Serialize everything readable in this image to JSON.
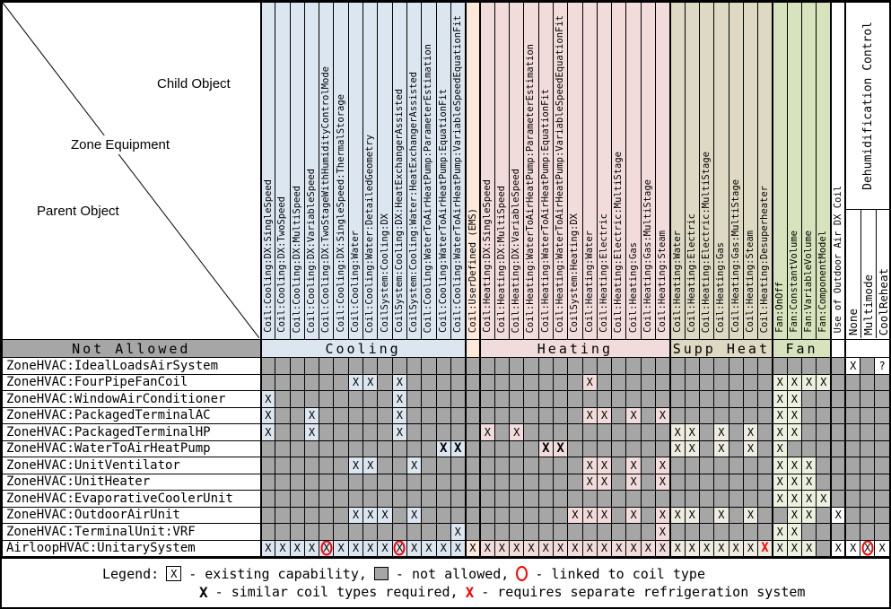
{
  "corner": {
    "child_object": "Child Object",
    "zone_equipment": "Zone Equipment",
    "parent_object": "Parent Object"
  },
  "not_allowed_header": "Not Allowed",
  "column_groups": [
    {
      "label": "Cooling",
      "span": 14,
      "key": "cooling"
    },
    {
      "label": "",
      "span": 1,
      "key": "userdef"
    },
    {
      "label": "Heating",
      "span": 13,
      "key": "heating"
    },
    {
      "label": "Supp Heat",
      "span": 7,
      "key": "supp"
    },
    {
      "label": "Fan",
      "span": 4,
      "key": "fan"
    },
    {
      "label": "",
      "span": 1,
      "key": "oa"
    },
    {
      "label": "",
      "span": 3,
      "key": "dehumid"
    }
  ],
  "dehumidification_group_label": "Dehumidification Control",
  "columns": [
    "Coil:Cooling:DX:SingleSpeed",
    "Coil:Cooling:DX:TwoSpeed",
    "Coil:Cooling:DX:MultiSpeed",
    "Coil:Cooling:DX:VariableSpeed",
    "Coil:Cooling:DX:TwoStageWithHumidityControlMode",
    "Coil:Cooling:DX:SingleSpeed:ThermalStorage",
    "Coil:Cooling:Water",
    "Coil:Cooling:Water:DetailedGeometry",
    "CoilSystem:Cooling:DX",
    "CoilSystem:Cooling:DX:HeatExchangerAssisted",
    "CoilSystem:Cooling:Water:HeatExchangerAssisted",
    "Coil:Cooling:WaterToAirHeatPump:ParameterEstimation",
    "Coil:Cooling:WaterToAirHeatPump:EquationFit",
    "Coil:Cooling:WaterToAirHeatPump:VariableSpeedEquationFit",
    "Coil:UserDefined (EMS)",
    "Coil:Heating:DX:SingleSpeed",
    "Coil:Heating:DX:MultiSpeed",
    "Coil:Heating:DX:VariableSpeed",
    "Coil:Heating:WaterToAirHeatPump:ParameterEstimation",
    "Coil:Heating:WaterToAirHeatPump:EquationFit",
    "Coil:Heating:WaterToAirHeatPump:VariableSpeedEquationFit",
    "CoilSystem:Heating:DX",
    "Coil:Heating:Water",
    "Coil:Heating:Electric",
    "Coil:Heating:Electric:MultiStage",
    "Coil:Heating:Gas",
    "Coil:Heating:Gas:MultiStage",
    "Coil:Heating:Steam",
    "Coil:Heating:Water",
    "Coil:Heating:Electric",
    "Coil:Heating:Electric:MultiStage",
    "Coil:Heating:Gas",
    "Coil:Heating:Gas:MultiStage",
    "Coil:Heating:Steam",
    "Coil:Heating:Desuperheater",
    "Fan:OnOff",
    "Fan:ConstantVolume",
    "Fan:VariableVolume",
    "Fan:ComponentModel",
    "Use of Outdoor Air DX Coil",
    "None",
    "Multimode",
    "CoolReheat"
  ],
  "cell_codes": {
    "X": "existing capability",
    "B": "similar coil types required",
    "R": "requires separate refrigeration system",
    "O": "linked to coil type",
    "?": "unknown",
    ".": "not allowed"
  },
  "rows": [
    {
      "label": "ZoneHVAC:IdealLoadsAirSystem",
      "cells": "........................................X.?"
    },
    {
      "label": "ZoneHVAC:FourPipeFanCoil",
      "cells": "......XX.X............X............XXXX...."
    },
    {
      "label": "ZoneHVAC:WindowAirConditioner",
      "cells": "X........X.........................XX......"
    },
    {
      "label": "ZoneHVAC:PackagedTerminalAC",
      "cells": "X..X.....X............XX.X.X.......XX......"
    },
    {
      "label": "ZoneHVAC:PackagedTerminalHP",
      "cells": "X..X.....X.....X.X..........XX.X.X.XX......"
    },
    {
      "label": "ZoneHVAC:WaterToAirHeatPump",
      "cells": "............BB.....BB.......XX.X.X.X......."
    },
    {
      "label": "ZoneHVAC:UnitVentilator",
      "cells": "......XX..X...........XX.X.X.......XXX....."
    },
    {
      "label": "ZoneHVAC:UnitHeater",
      "cells": "......................XX.X.X.......XXX....."
    },
    {
      "label": "ZoneHVAC:EvaporativeCoolerUnit",
      "cells": "...................................XXXX...."
    },
    {
      "label": "ZoneHVAC:OutdoorAirUnit",
      "cells": "......XXX.X..........XXX.X.XXX.X.X..XX.X..."
    },
    {
      "label": "ZoneHVAC:TerminalUnit:VRF",
      "cells": ".............X.............X.......XX......"
    },
    {
      "label": "AirloopHVAC:UnitarySystem",
      "cells": "XXXXOXXXXOXXXXXXXXXXXXXXXXXXXXXXXXRXXX.XXOX"
    }
  ],
  "legend": {
    "prefix": "Legend:",
    "line1": [
      {
        "symbol": "boxed-x",
        "char": "X",
        "text": "- existing capability,"
      },
      {
        "symbol": "gray-box",
        "char": "",
        "text": "- not allowed,"
      },
      {
        "symbol": "red-circle",
        "char": "",
        "text": "- linked to coil type"
      }
    ],
    "line2": [
      {
        "symbol": "bold-x",
        "char": "X",
        "text": "- similar coil types required,"
      },
      {
        "symbol": "red-x",
        "char": "X",
        "text": "- requires separate refrigeration system"
      }
    ]
  },
  "colors": {
    "cooling_bg": "#dce6f1",
    "userdef_bg": "#fde9d9",
    "heating_bg": "#f2dcdb",
    "supp_header_bg": "#ddd9c3",
    "supp_cell_bg": "#eeece1",
    "fan_header_bg": "#d6e3bc",
    "fan_cell_bg": "#ebf1de",
    "not_allowed_bg": "#a6a6a6",
    "white": "#ffffff",
    "red": "#ff0000",
    "grid": "#000000"
  }
}
